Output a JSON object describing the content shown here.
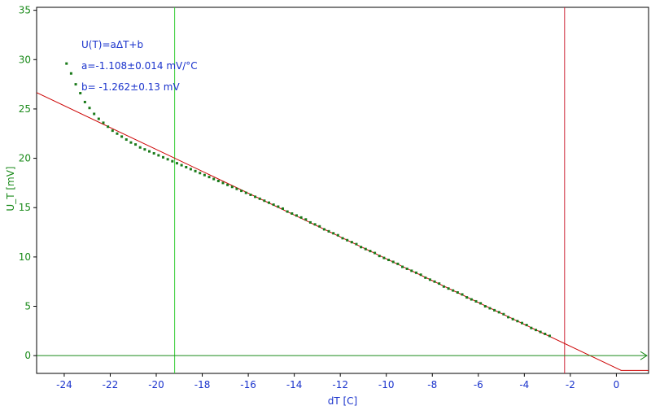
{
  "chart_data": {
    "type": "scatter",
    "xlabel": "dT [C]",
    "ylabel": "U_T [mV]",
    "xlim": [
      -25.2,
      1.4
    ],
    "ylim": [
      -1.8,
      35.3
    ],
    "x_ticks": [
      -24,
      -22,
      -20,
      -18,
      -16,
      -14,
      -12,
      -10,
      -8,
      -6,
      -4,
      -2,
      0
    ],
    "y_ticks": [
      0,
      5,
      10,
      15,
      20,
      25,
      30,
      35
    ],
    "grid": false,
    "annotations": [
      "U(T)=aΔT+b",
      "a=-1.108±0.014 mV/°C",
      "b= -1.262±0.13 mV"
    ],
    "vertical_markers": [
      {
        "x": -19.2,
        "color": "#33cc33"
      },
      {
        "x": -2.25,
        "color": "#cc2233"
      }
    ],
    "fit_line": {
      "slope": -1.108,
      "intercept": -1.262,
      "color": "#cc0000",
      "x_from": -25.2,
      "x_to": 0.2,
      "flat_to": 1.4,
      "flat_y": -1.5
    },
    "series": [
      {
        "color": "#1a7a1a",
        "points": [
          [
            -23.9,
            29.6
          ],
          [
            -23.7,
            28.6
          ],
          [
            -23.5,
            27.5
          ],
          [
            -23.3,
            26.6
          ],
          [
            -23.1,
            25.7
          ],
          [
            -22.9,
            25.1
          ],
          [
            -22.7,
            24.5
          ],
          [
            -22.5,
            24.0
          ],
          [
            -22.3,
            23.6
          ],
          [
            -22.1,
            23.2
          ],
          [
            -21.9,
            22.8
          ],
          [
            -21.7,
            22.5
          ],
          [
            -21.5,
            22.2
          ],
          [
            -21.3,
            21.9
          ],
          [
            -21.1,
            21.6
          ],
          [
            -20.9,
            21.4
          ],
          [
            -20.7,
            21.1
          ],
          [
            -20.5,
            20.9
          ],
          [
            -20.3,
            20.7
          ],
          [
            -20.1,
            20.5
          ],
          [
            -19.9,
            20.3
          ],
          [
            -19.7,
            20.1
          ],
          [
            -19.5,
            19.9
          ],
          [
            -19.3,
            19.7
          ],
          [
            -19.1,
            19.5
          ],
          [
            -18.9,
            19.3
          ],
          [
            -18.7,
            19.1
          ],
          [
            -18.5,
            18.9
          ],
          [
            -18.3,
            18.7
          ],
          [
            -18.1,
            18.5
          ],
          [
            -17.9,
            18.3
          ],
          [
            -17.7,
            18.1
          ],
          [
            -17.5,
            17.9
          ],
          [
            -17.3,
            17.7
          ],
          [
            -17.1,
            17.5
          ],
          [
            -16.9,
            17.3
          ],
          [
            -16.7,
            17.1
          ],
          [
            -16.5,
            16.9
          ],
          [
            -16.3,
            16.7
          ],
          [
            -16.1,
            16.5
          ],
          [
            -15.9,
            16.3
          ],
          [
            -15.7,
            16.1
          ],
          [
            -15.5,
            15.9
          ],
          [
            -15.3,
            15.7
          ],
          [
            -15.1,
            15.5
          ],
          [
            -14.9,
            15.3
          ],
          [
            -14.7,
            15.1
          ],
          [
            -14.5,
            14.9
          ],
          [
            -14.3,
            14.6
          ],
          [
            -14.1,
            14.4
          ],
          [
            -13.9,
            14.2
          ],
          [
            -13.7,
            14.0
          ],
          [
            -13.5,
            13.8
          ],
          [
            -13.3,
            13.5
          ],
          [
            -13.1,
            13.3
          ],
          [
            -12.9,
            13.1
          ],
          [
            -12.7,
            12.8
          ],
          [
            -12.5,
            12.6
          ],
          [
            -12.3,
            12.4
          ],
          [
            -12.1,
            12.2
          ],
          [
            -11.9,
            11.9
          ],
          [
            -11.7,
            11.7
          ],
          [
            -11.5,
            11.5
          ],
          [
            -11.3,
            11.3
          ],
          [
            -11.1,
            11.0
          ],
          [
            -10.9,
            10.8
          ],
          [
            -10.7,
            10.6
          ],
          [
            -10.5,
            10.4
          ],
          [
            -10.3,
            10.1
          ],
          [
            -10.1,
            9.9
          ],
          [
            -9.9,
            9.7
          ],
          [
            -9.7,
            9.5
          ],
          [
            -9.5,
            9.3
          ],
          [
            -9.3,
            9.0
          ],
          [
            -9.1,
            8.8
          ],
          [
            -8.9,
            8.6
          ],
          [
            -8.7,
            8.4
          ],
          [
            -8.5,
            8.2
          ],
          [
            -8.3,
            7.9
          ],
          [
            -8.1,
            7.7
          ],
          [
            -7.9,
            7.5
          ],
          [
            -7.7,
            7.3
          ],
          [
            -7.5,
            7.0
          ],
          [
            -7.3,
            6.8
          ],
          [
            -7.1,
            6.6
          ],
          [
            -6.9,
            6.4
          ],
          [
            -6.7,
            6.2
          ],
          [
            -6.5,
            5.9
          ],
          [
            -6.3,
            5.7
          ],
          [
            -6.1,
            5.5
          ],
          [
            -5.9,
            5.3
          ],
          [
            -5.7,
            5.0
          ],
          [
            -5.5,
            4.8
          ],
          [
            -5.3,
            4.6
          ],
          [
            -5.1,
            4.4
          ],
          [
            -4.9,
            4.2
          ],
          [
            -4.7,
            3.9
          ],
          [
            -4.5,
            3.7
          ],
          [
            -4.3,
            3.5
          ],
          [
            -4.1,
            3.3
          ],
          [
            -3.9,
            3.1
          ],
          [
            -3.7,
            2.8
          ],
          [
            -3.5,
            2.6
          ],
          [
            -3.3,
            2.4
          ],
          [
            -3.1,
            2.2
          ],
          [
            -2.9,
            2.0
          ]
        ]
      }
    ]
  }
}
